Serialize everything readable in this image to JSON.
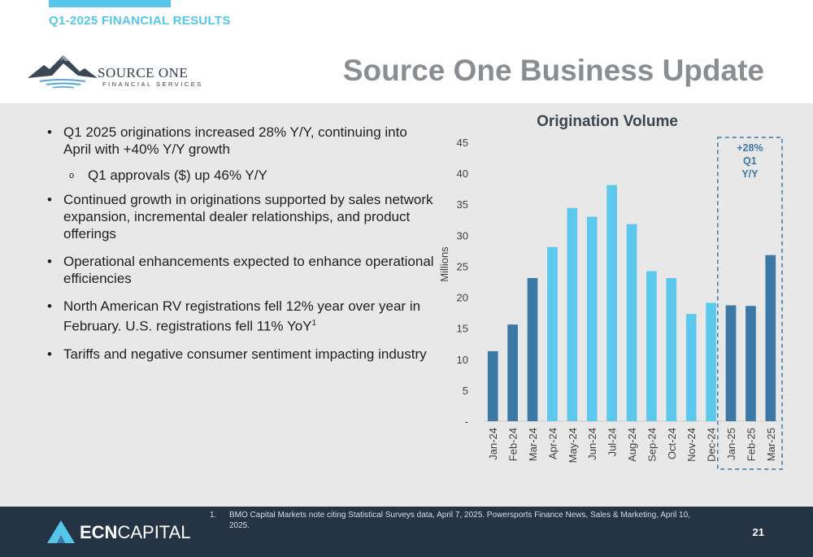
{
  "header": {
    "section_label": "Q1-2025 FINANCIAL RESULTS",
    "title": "Source One Business Update",
    "logo": {
      "name": "SOURCE ONE",
      "subtitle": "FINANCIAL SERVICES"
    }
  },
  "bullets": [
    {
      "text": "Q1 2025 originations increased 28% Y/Y, continuing into April with +40% Y/Y growth",
      "level": 1
    },
    {
      "text": "Q1 approvals ($) up 46% Y/Y",
      "level": 2
    },
    {
      "text": "Continued growth in originations supported by sales network expansion, incremental dealer relationships, and product offerings",
      "level": 1
    },
    {
      "text": "Operational enhancements expected to enhance operational efficiencies",
      "level": 1
    },
    {
      "text": "North American RV registrations fell 12% year over year in February. U.S. registrations fell 11% YoY",
      "sup": "1",
      "level": 1
    },
    {
      "text": "Tariffs and negative consumer sentiment impacting industry",
      "level": 1
    }
  ],
  "chart_data": {
    "type": "bar",
    "title": "Origination Volume",
    "ylabel": "Millions",
    "xlabel": "",
    "ylim": [
      0,
      45
    ],
    "yticks": [
      0,
      5,
      10,
      15,
      20,
      25,
      30,
      35,
      40,
      45
    ],
    "ytick_labels": [
      "-",
      "5",
      "10",
      "15",
      "20",
      "25",
      "30",
      "35",
      "40",
      "45"
    ],
    "categories": [
      "Jan-24",
      "Feb-24",
      "Mar-24",
      "Apr-24",
      "May-24",
      "Jun-24",
      "Jul-24",
      "Aug-24",
      "Sep-24",
      "Oct-24",
      "Nov-24",
      "Dec-24",
      "Jan-25",
      "Feb-25",
      "Mar-25"
    ],
    "values": [
      11.3,
      15.6,
      23.1,
      28.1,
      34.4,
      33.0,
      38.1,
      31.8,
      24.2,
      23.1,
      17.3,
      19.1,
      18.7,
      18.6,
      26.8
    ],
    "bar_colors": [
      "#3b78a6",
      "#3b78a6",
      "#3b78a6",
      "#5cc8eb",
      "#5cc8eb",
      "#5cc8eb",
      "#5cc8eb",
      "#5cc8eb",
      "#5cc8eb",
      "#5cc8eb",
      "#5cc8eb",
      "#5cc8eb",
      "#3b78a6",
      "#3b78a6",
      "#3b78a6"
    ],
    "grid": false,
    "annotation": {
      "lines": [
        "+28%",
        "Q1",
        "Y/Y"
      ],
      "color": "#3b78a6",
      "highlight_categories": [
        "Jan-25",
        "Feb-25",
        "Mar-25"
      ]
    }
  },
  "footer": {
    "logo_text_bold": "ECN",
    "logo_text_light": "CAPITAL",
    "footnote_number": "1.",
    "footnote": "BMO Capital Markets note citing Statistical Surveys data, April 7, 2025. Powersports Finance News, Sales & Marketing, April 10, 2025.",
    "page_number": "21"
  },
  "colors": {
    "accent": "#56c5ea",
    "dark_bar": "#3b78a6",
    "light_bar": "#5cc8eb",
    "footer_bg": "#253445",
    "title_gray": "#8a8e93"
  }
}
